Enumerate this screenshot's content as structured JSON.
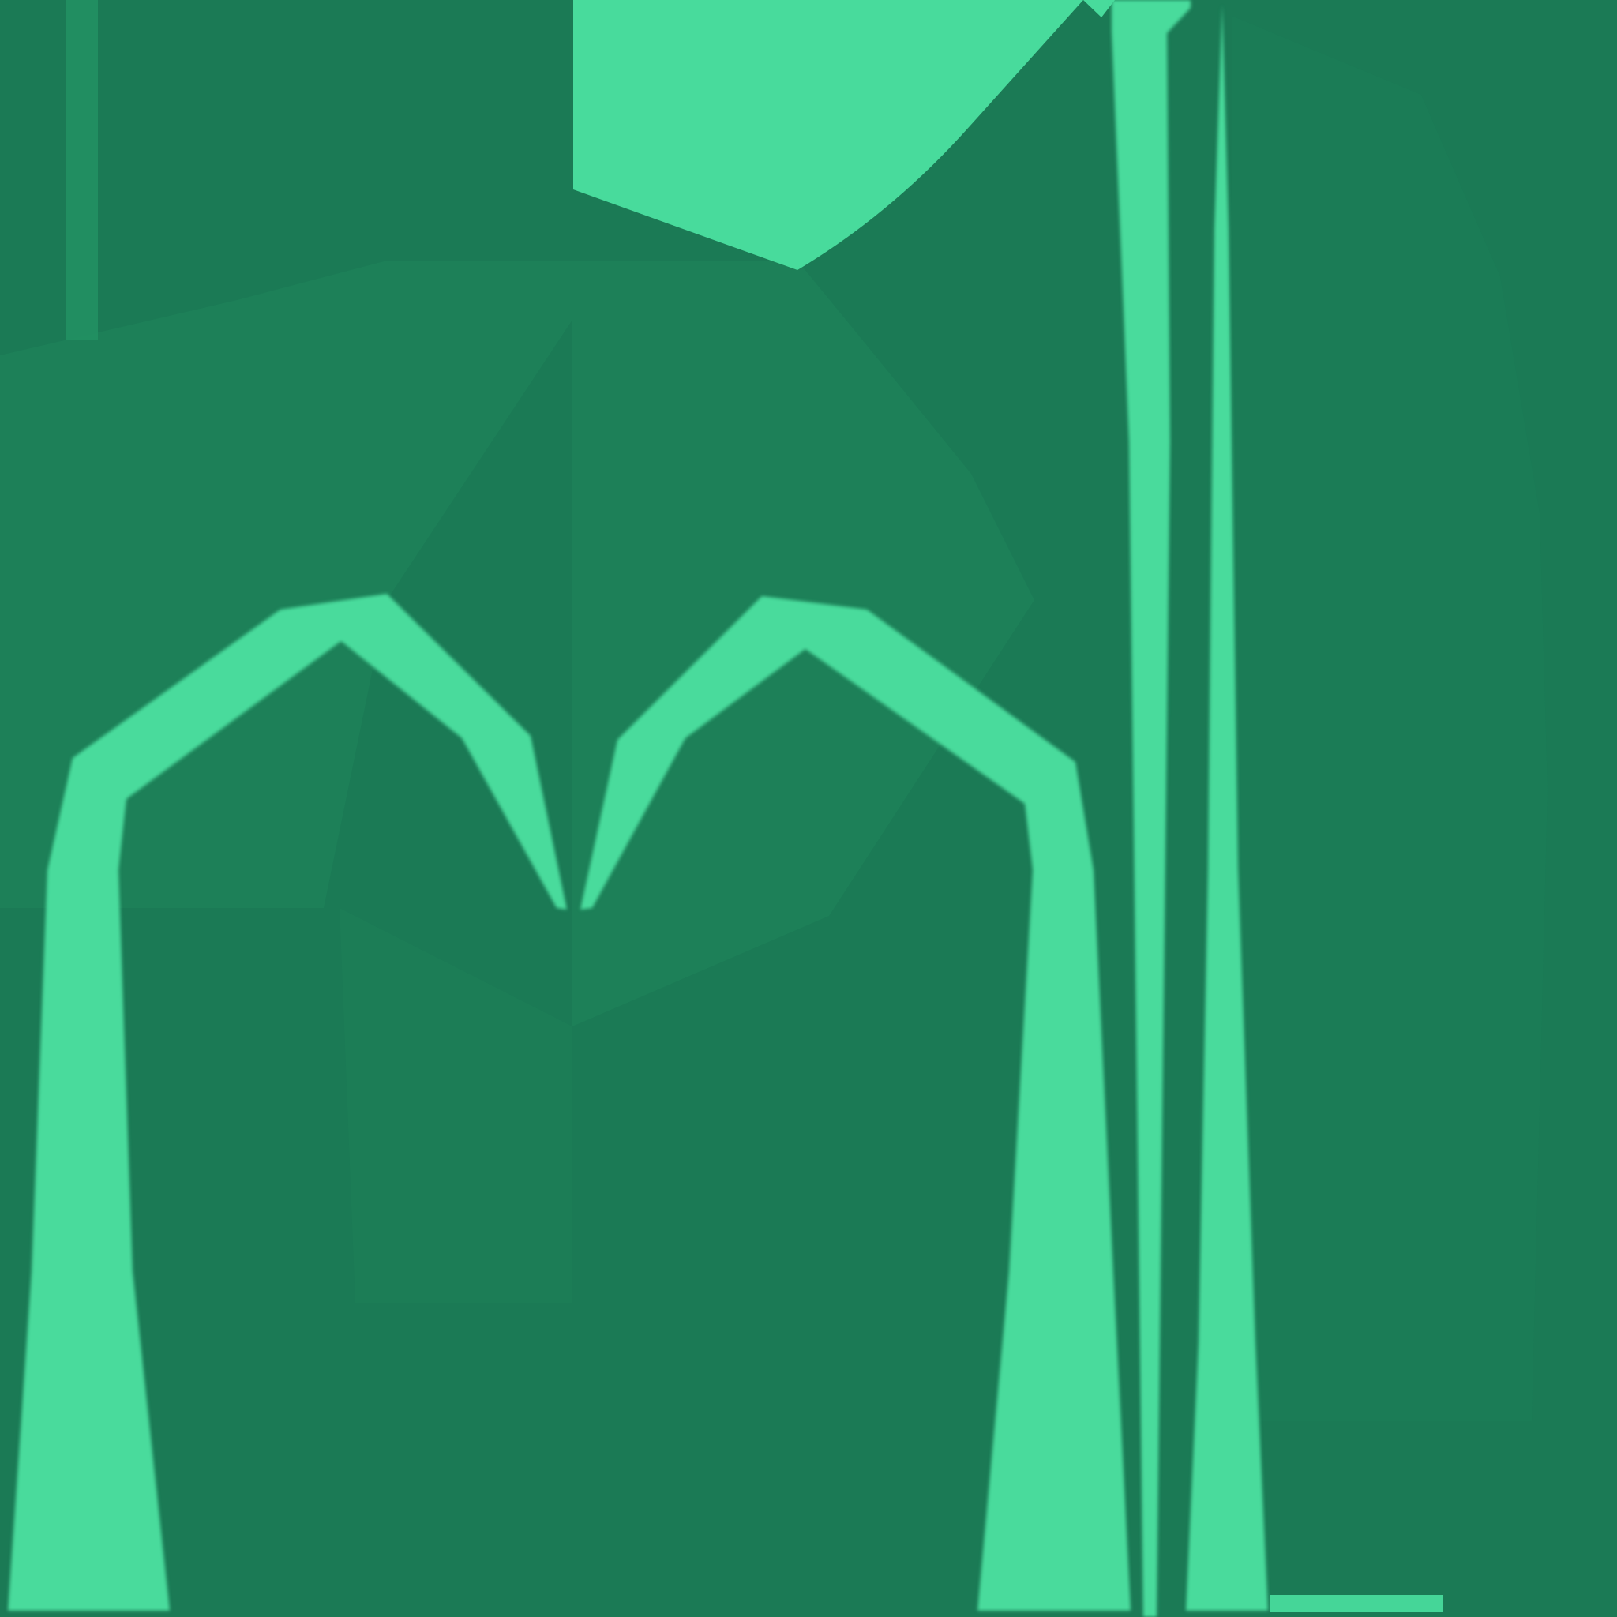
{
  "texture": {
    "kind": "uv-texture-atlas",
    "colors": {
      "background": "#1b7a55",
      "panel_tint": "#1e8159",
      "panel_shadow": "#1a7552",
      "accent": "#48db9c",
      "accent_edge": "#3cc48a"
    }
  }
}
